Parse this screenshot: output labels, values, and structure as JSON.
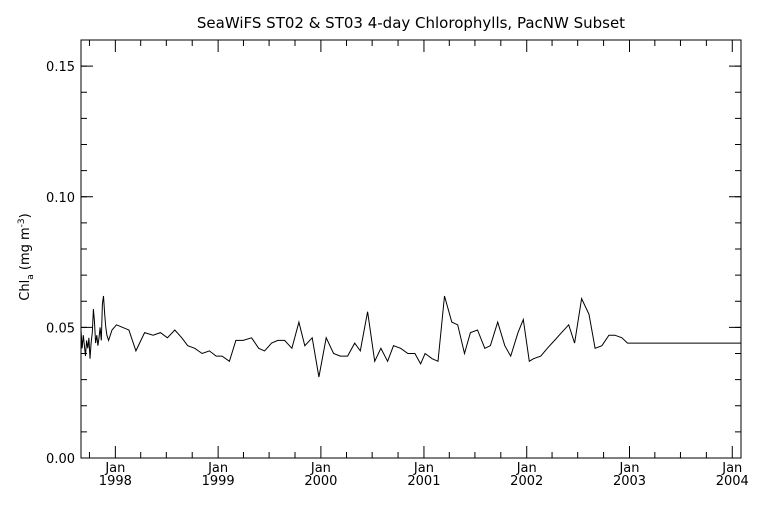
{
  "chart_data": {
    "type": "line",
    "title": "SeaWiFS ST02 & ST03 4-day Chlorophylls, PacNW Subset",
    "ylabel": {
      "main": "Chl",
      "sub": "a",
      "unit_open": " (mg m",
      "unit_sup": "-3",
      "unit_close": ")"
    },
    "xlabel": "",
    "ylim": [
      0.0,
      0.16
    ],
    "xlim": [
      "1997-09-01",
      "2004-02-01"
    ],
    "y_ticks": [
      "0.00",
      "0.05",
      "0.10",
      "0.15"
    ],
    "y_tick_values": [
      0.0,
      0.05,
      0.1,
      0.15
    ],
    "x_ticks": [
      {
        "date": "1998-01-01",
        "month": "Jan",
        "year": "1998"
      },
      {
        "date": "1999-01-01",
        "month": "Jan",
        "year": "1999"
      },
      {
        "date": "2000-01-01",
        "month": "Jan",
        "year": "2000"
      },
      {
        "date": "2001-01-01",
        "month": "Jan",
        "year": "2001"
      },
      {
        "date": "2002-01-01",
        "month": "Jan",
        "year": "2002"
      },
      {
        "date": "2003-01-01",
        "month": "Jan",
        "year": "2003"
      },
      {
        "date": "2004-01-01",
        "month": "Jan",
        "year": "2004"
      }
    ],
    "series": [
      {
        "x": [
          "1997-09-01",
          "1997-09-05",
          "1997-09-09",
          "1997-09-13",
          "1997-09-17",
          "1997-09-21",
          "1997-09-25",
          "1997-09-29",
          "1997-10-03",
          "1997-10-07",
          "1997-10-11",
          "1997-10-15",
          "1997-10-19",
          "1997-10-23",
          "1997-10-27",
          "1997-10-31",
          "1997-11-04",
          "1997-11-08",
          "1997-11-12",
          "1997-11-16",
          "1997-11-20",
          "1997-11-24",
          "1997-11-28",
          "1997-12-02",
          "1997-12-08",
          "1997-12-20",
          "1998-01-05",
          "1998-01-27",
          "1998-02-18",
          "1998-03-15",
          "1998-04-15",
          "1998-05-15",
          "1998-06-10",
          "1998-07-05",
          "1998-07-31",
          "1998-08-25",
          "1998-09-15",
          "1998-10-10",
          "1998-11-05",
          "1998-12-01",
          "1998-12-25",
          "1999-01-15",
          "1999-02-10",
          "1999-03-05",
          "1999-03-31",
          "1999-04-30",
          "1999-05-25",
          "1999-06-15",
          "1999-07-10",
          "1999-08-01",
          "1999-08-25",
          "1999-09-20",
          "1999-10-15",
          "1999-11-05",
          "1999-12-01",
          "1999-12-25",
          "2000-01-20",
          "2000-02-15",
          "2000-03-10",
          "2000-04-05",
          "2000-04-30",
          "2000-05-20",
          "2000-06-15",
          "2000-07-10",
          "2000-08-01",
          "2000-08-25",
          "2000-09-15",
          "2000-10-10",
          "2000-11-05",
          "2000-11-30",
          "2000-12-20",
          "2001-01-05",
          "2001-01-30",
          "2001-02-20",
          "2001-03-15",
          "2001-04-10",
          "2001-05-01",
          "2001-05-25",
          "2001-06-15",
          "2001-07-10",
          "2001-08-05",
          "2001-08-25",
          "2001-09-20",
          "2001-10-15",
          "2001-11-05",
          "2001-12-01",
          "2001-12-20",
          "2002-01-10",
          "2002-01-25",
          "2002-02-20",
          "2002-03-15",
          "2002-04-10",
          "2002-05-05",
          "2002-05-30",
          "2002-06-20",
          "2002-07-15",
          "2002-08-10",
          "2002-09-01",
          "2002-09-25",
          "2002-10-20",
          "2002-11-10",
          "2002-12-05",
          "2002-12-25",
          "2003-01-10",
          "2003-02-05",
          "2003-03-01",
          "2003-03-25",
          "2003-04-20",
          "2003-05-15",
          "2003-06-10",
          "2003-07-05",
          "2003-07-30",
          "2003-08-25",
          "2003-09-15",
          "2003-10-10",
          "2003-11-05",
          "2003-12-01",
          "2003-12-25",
          "2004-01-20",
          "2004-02-01"
        ],
        "y": [
          0.049,
          0.042,
          0.047,
          0.043,
          0.039,
          0.045,
          0.042,
          0.046,
          0.038,
          0.044,
          0.048,
          0.057,
          0.052,
          0.044,
          0.047,
          0.043,
          0.046,
          0.05,
          0.045,
          0.059,
          0.062,
          0.055,
          0.05,
          0.047,
          0.045,
          0.049,
          0.051,
          0.05,
          0.049,
          0.041,
          0.048,
          0.047,
          0.048,
          0.046,
          0.049,
          0.046,
          0.043,
          0.042,
          0.04,
          0.041,
          0.039,
          0.039,
          0.037,
          0.045,
          0.045,
          0.046,
          0.042,
          0.041,
          0.044,
          0.045,
          0.045,
          0.042,
          0.052,
          0.043,
          0.046,
          0.031,
          0.046,
          0.04,
          0.039,
          0.039,
          0.044,
          0.041,
          0.056,
          0.037,
          0.042,
          0.037,
          0.043,
          0.042,
          0.04,
          0.04,
          0.036,
          0.04,
          0.038,
          0.037,
          0.062,
          0.052,
          0.051,
          0.04,
          0.048,
          0.049,
          0.042,
          0.043,
          0.052,
          0.043,
          0.039,
          0.048,
          0.053,
          0.037,
          0.038,
          0.039,
          0.042,
          0.045,
          0.048,
          0.051,
          0.044,
          0.061,
          0.055,
          0.042,
          0.043,
          0.047,
          0.047,
          0.046,
          0.044,
          0.044,
          0.044,
          0.044,
          0.044,
          0.044,
          0.044,
          0.044,
          0.044,
          0.044,
          0.044,
          0.044,
          0.044,
          0.044,
          0.044,
          0.044,
          0.044,
          0.044
        ]
      }
    ],
    "grid": false,
    "legend": "none"
  }
}
